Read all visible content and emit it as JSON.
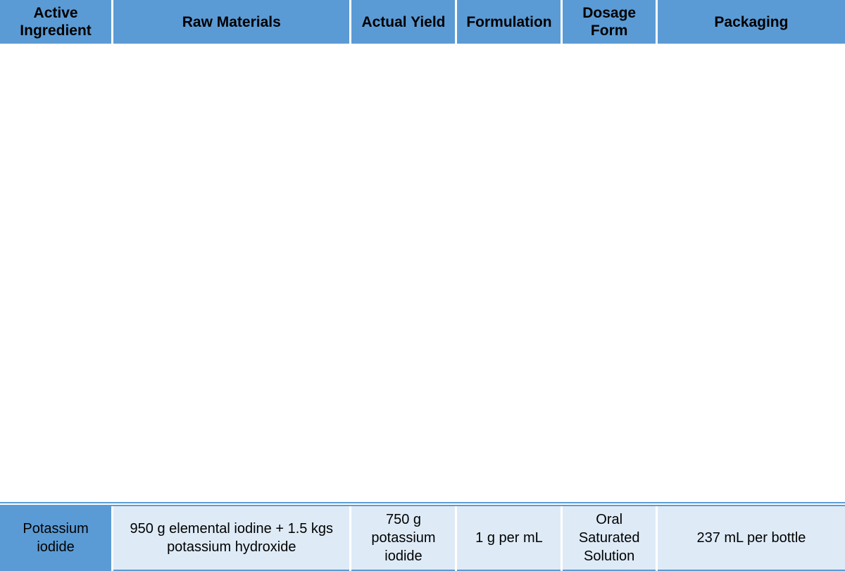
{
  "table": {
    "columns": [
      {
        "label": "Active Ingredient",
        "width": "13.3%"
      },
      {
        "label": "Raw Materials",
        "width": "28.2%"
      },
      {
        "label": "Actual Yield",
        "width": "12.5%"
      },
      {
        "label": "Formulation",
        "width": "12.5%"
      },
      {
        "label": "Dosage Form",
        "width": "11.2%"
      },
      {
        "label": "Packaging",
        "width": "22.3%"
      }
    ],
    "rows": [
      {
        "active_ingredient": "Potassium iodide",
        "raw_materials": "950 g elemental iodine + 1.5 kgs potassium hydroxide",
        "actual_yield": "750 g potassium iodide",
        "formulation": "1 g per mL",
        "dosage_form": "Oral Saturated Solution",
        "packaging": "237 mL per bottle"
      }
    ],
    "styling": {
      "header_bg": "#5b9bd5",
      "header_text": "#000000",
      "row_label_bg": "#5b9bd5",
      "cell_bg": "#deebf7",
      "cell_text": "#000000",
      "border_color": "#ffffff",
      "separator_color": "#5b9bd5",
      "header_fontsize": 21,
      "cell_fontsize": 20,
      "font_family": "Arial"
    }
  }
}
